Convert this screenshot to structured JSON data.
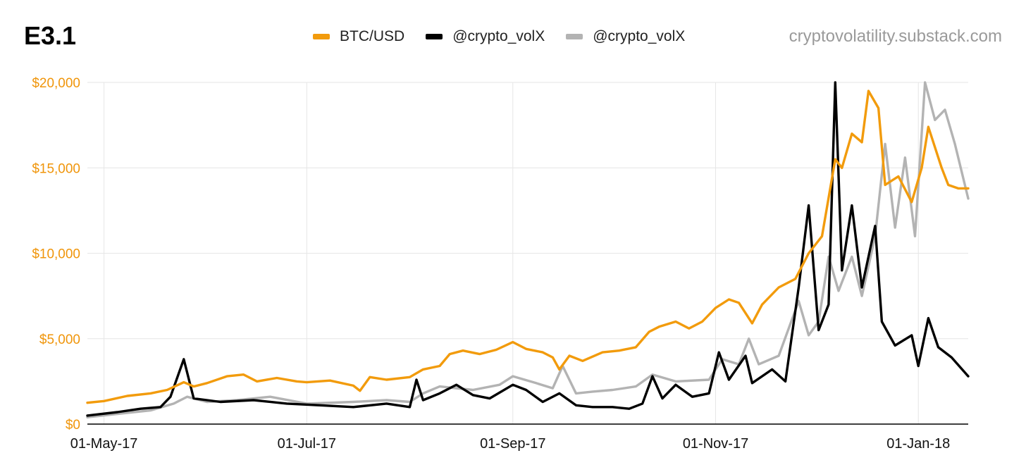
{
  "header": {
    "title": "E3.1",
    "watermark": "cryptovolatility.substack.com"
  },
  "colors": {
    "btc": "#f29b0c",
    "vol_black": "#000000",
    "vol_gray": "#b3b3b3",
    "grid": "#e6e6e6",
    "ytick": "#f0950a",
    "axis": "#000000"
  },
  "legend": [
    {
      "label": "BTC/USD",
      "color": "#f29b0c"
    },
    {
      "label": "@crypto_volX",
      "color": "#000000"
    },
    {
      "label": "@crypto_volX",
      "color": "#b3b3b3"
    }
  ],
  "chart_data": {
    "type": "line",
    "title": "E3.1",
    "xlabel": "",
    "ylabel": "",
    "ylim": [
      0,
      20000
    ],
    "yticks": [
      0,
      5000,
      10000,
      15000,
      20000
    ],
    "ytick_labels": [
      "$0",
      "$5,000",
      "$10,000",
      "$15,000",
      "$20,000"
    ],
    "xlim": [
      "2017-04-26",
      "2018-01-16"
    ],
    "xticks": [
      "2017-05-01",
      "2017-07-01",
      "2017-09-01",
      "2017-11-01",
      "2018-01-01"
    ],
    "xtick_labels": [
      "01-May-17",
      "01-Jul-17",
      "01-Sep-17",
      "01-Nov-17",
      "01-Jan-18"
    ],
    "grid": true,
    "legend_position": "top-center",
    "series": [
      {
        "name": "BTC/USD",
        "color": "#f29b0c",
        "points": [
          [
            "2017-04-26",
            1250
          ],
          [
            "2017-05-01",
            1350
          ],
          [
            "2017-05-08",
            1650
          ],
          [
            "2017-05-15",
            1800
          ],
          [
            "2017-05-20",
            2000
          ],
          [
            "2017-05-25",
            2450
          ],
          [
            "2017-05-28",
            2200
          ],
          [
            "2017-06-01",
            2400
          ],
          [
            "2017-06-07",
            2800
          ],
          [
            "2017-06-12",
            2900
          ],
          [
            "2017-06-16",
            2500
          ],
          [
            "2017-06-22",
            2700
          ],
          [
            "2017-06-28",
            2500
          ],
          [
            "2017-07-01",
            2450
          ],
          [
            "2017-07-08",
            2550
          ],
          [
            "2017-07-15",
            2250
          ],
          [
            "2017-07-17",
            1950
          ],
          [
            "2017-07-20",
            2750
          ],
          [
            "2017-07-25",
            2600
          ],
          [
            "2017-08-01",
            2750
          ],
          [
            "2017-08-05",
            3200
          ],
          [
            "2017-08-10",
            3400
          ],
          [
            "2017-08-13",
            4100
          ],
          [
            "2017-08-17",
            4300
          ],
          [
            "2017-08-22",
            4100
          ],
          [
            "2017-08-27",
            4350
          ],
          [
            "2017-09-01",
            4800
          ],
          [
            "2017-09-05",
            4400
          ],
          [
            "2017-09-10",
            4200
          ],
          [
            "2017-09-13",
            3900
          ],
          [
            "2017-09-15",
            3200
          ],
          [
            "2017-09-18",
            4000
          ],
          [
            "2017-09-22",
            3700
          ],
          [
            "2017-09-28",
            4200
          ],
          [
            "2017-10-03",
            4300
          ],
          [
            "2017-10-08",
            4500
          ],
          [
            "2017-10-12",
            5400
          ],
          [
            "2017-10-15",
            5700
          ],
          [
            "2017-10-20",
            6000
          ],
          [
            "2017-10-24",
            5600
          ],
          [
            "2017-10-28",
            6000
          ],
          [
            "2017-11-01",
            6800
          ],
          [
            "2017-11-05",
            7300
          ],
          [
            "2017-11-08",
            7100
          ],
          [
            "2017-11-12",
            5900
          ],
          [
            "2017-11-15",
            7000
          ],
          [
            "2017-11-20",
            8000
          ],
          [
            "2017-11-25",
            8500
          ],
          [
            "2017-11-29",
            10000
          ],
          [
            "2017-12-03",
            11000
          ],
          [
            "2017-12-07",
            15500
          ],
          [
            "2017-12-09",
            15000
          ],
          [
            "2017-12-12",
            17000
          ],
          [
            "2017-12-15",
            16500
          ],
          [
            "2017-12-17",
            19500
          ],
          [
            "2017-12-20",
            18500
          ],
          [
            "2017-12-22",
            14000
          ],
          [
            "2017-12-26",
            14500
          ],
          [
            "2017-12-30",
            13000
          ],
          [
            "2018-01-02",
            15000
          ],
          [
            "2018-01-04",
            17400
          ],
          [
            "2018-01-08",
            15000
          ],
          [
            "2018-01-10",
            14000
          ],
          [
            "2018-01-13",
            13800
          ],
          [
            "2018-01-16",
            13800
          ]
        ]
      },
      {
        "name": "@crypto_volX",
        "color": "#000000",
        "points": [
          [
            "2017-04-26",
            500
          ],
          [
            "2017-05-05",
            700
          ],
          [
            "2017-05-12",
            900
          ],
          [
            "2017-05-18",
            1000
          ],
          [
            "2017-05-21",
            1600
          ],
          [
            "2017-05-25",
            3800
          ],
          [
            "2017-05-28",
            1500
          ],
          [
            "2017-06-05",
            1300
          ],
          [
            "2017-06-15",
            1400
          ],
          [
            "2017-06-25",
            1200
          ],
          [
            "2017-07-05",
            1100
          ],
          [
            "2017-07-15",
            1000
          ],
          [
            "2017-07-25",
            1200
          ],
          [
            "2017-08-01",
            1000
          ],
          [
            "2017-08-03",
            2600
          ],
          [
            "2017-08-05",
            1400
          ],
          [
            "2017-08-10",
            1800
          ],
          [
            "2017-08-15",
            2300
          ],
          [
            "2017-08-20",
            1700
          ],
          [
            "2017-08-25",
            1500
          ],
          [
            "2017-09-01",
            2300
          ],
          [
            "2017-09-05",
            2000
          ],
          [
            "2017-09-10",
            1300
          ],
          [
            "2017-09-15",
            1800
          ],
          [
            "2017-09-20",
            1100
          ],
          [
            "2017-09-25",
            1000
          ],
          [
            "2017-10-01",
            1000
          ],
          [
            "2017-10-06",
            900
          ],
          [
            "2017-10-10",
            1200
          ],
          [
            "2017-10-13",
            2800
          ],
          [
            "2017-10-16",
            1500
          ],
          [
            "2017-10-20",
            2300
          ],
          [
            "2017-10-25",
            1600
          ],
          [
            "2017-10-30",
            1800
          ],
          [
            "2017-11-02",
            4200
          ],
          [
            "2017-11-05",
            2600
          ],
          [
            "2017-11-10",
            4000
          ],
          [
            "2017-11-12",
            2400
          ],
          [
            "2017-11-18",
            3200
          ],
          [
            "2017-11-22",
            2500
          ],
          [
            "2017-11-26",
            8000
          ],
          [
            "2017-11-29",
            12800
          ],
          [
            "2017-12-02",
            5500
          ],
          [
            "2017-12-05",
            7000
          ],
          [
            "2017-12-07",
            20000
          ],
          [
            "2017-12-09",
            9000
          ],
          [
            "2017-12-12",
            12800
          ],
          [
            "2017-12-15",
            8000
          ],
          [
            "2017-12-19",
            11600
          ],
          [
            "2017-12-21",
            6000
          ],
          [
            "2017-12-25",
            4600
          ],
          [
            "2017-12-30",
            5200
          ],
          [
            "2018-01-01",
            3400
          ],
          [
            "2018-01-04",
            6200
          ],
          [
            "2018-01-07",
            4500
          ],
          [
            "2018-01-11",
            3900
          ],
          [
            "2018-01-16",
            2800
          ]
        ]
      },
      {
        "name": "@crypto_volX",
        "color": "#b3b3b3",
        "points": [
          [
            "2017-04-26",
            400
          ],
          [
            "2017-05-05",
            600
          ],
          [
            "2017-05-15",
            800
          ],
          [
            "2017-05-22",
            1200
          ],
          [
            "2017-05-26",
            1600
          ],
          [
            "2017-06-01",
            1300
          ],
          [
            "2017-06-10",
            1400
          ],
          [
            "2017-06-20",
            1600
          ],
          [
            "2017-07-01",
            1200
          ],
          [
            "2017-07-15",
            1300
          ],
          [
            "2017-07-25",
            1400
          ],
          [
            "2017-08-01",
            1300
          ],
          [
            "2017-08-05",
            1800
          ],
          [
            "2017-08-10",
            2200
          ],
          [
            "2017-08-20",
            2000
          ],
          [
            "2017-08-28",
            2300
          ],
          [
            "2017-09-01",
            2800
          ],
          [
            "2017-09-08",
            2400
          ],
          [
            "2017-09-13",
            2100
          ],
          [
            "2017-09-16",
            3400
          ],
          [
            "2017-09-20",
            1800
          ],
          [
            "2017-09-25",
            1900
          ],
          [
            "2017-10-01",
            2000
          ],
          [
            "2017-10-08",
            2200
          ],
          [
            "2017-10-13",
            2900
          ],
          [
            "2017-10-20",
            2500
          ],
          [
            "2017-10-30",
            2600
          ],
          [
            "2017-11-03",
            3800
          ],
          [
            "2017-11-08",
            3500
          ],
          [
            "2017-11-11",
            5000
          ],
          [
            "2017-11-14",
            3500
          ],
          [
            "2017-11-20",
            4000
          ],
          [
            "2017-11-26",
            7200
          ],
          [
            "2017-11-29",
            5200
          ],
          [
            "2017-12-02",
            6000
          ],
          [
            "2017-12-05",
            9800
          ],
          [
            "2017-12-08",
            7800
          ],
          [
            "2017-12-12",
            9800
          ],
          [
            "2017-12-15",
            7500
          ],
          [
            "2017-12-19",
            11000
          ],
          [
            "2017-12-22",
            16400
          ],
          [
            "2017-12-25",
            11500
          ],
          [
            "2017-12-28",
            15600
          ],
          [
            "2017-12-31",
            11000
          ],
          [
            "2018-01-03",
            20000
          ],
          [
            "2018-01-06",
            17800
          ],
          [
            "2018-01-09",
            18400
          ],
          [
            "2018-01-12",
            16400
          ],
          [
            "2018-01-16",
            13200
          ]
        ]
      }
    ]
  }
}
